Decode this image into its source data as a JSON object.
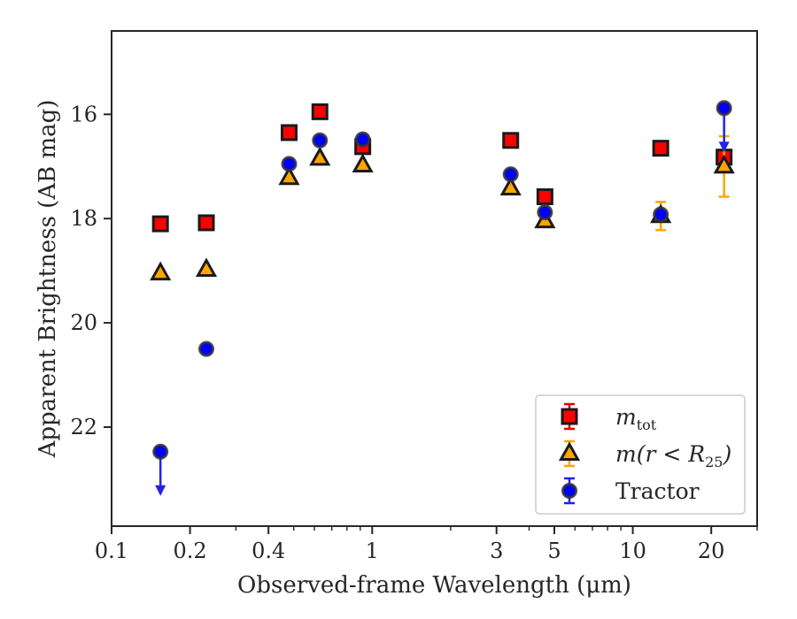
{
  "chart_data": {
    "type": "scatter",
    "xlabel": "Observed-frame Wavelength (μm)",
    "ylabel": "Apparent Brightness (AB mag)",
    "xscale": "log",
    "xlim": [
      0.1,
      30
    ],
    "ylim": [
      23.9,
      14.4
    ],
    "y_inverted": true,
    "x_ticks": [
      0.1,
      0.2,
      0.4,
      1,
      3,
      5,
      10,
      20
    ],
    "x_tick_labels": [
      "0.1",
      "0.2",
      "0.4",
      "1",
      "3",
      "5",
      "10",
      "20"
    ],
    "y_ticks": [
      16,
      18,
      20,
      22
    ],
    "y_tick_labels": [
      "16",
      "18",
      "20",
      "22"
    ],
    "legend_position": "lower-right",
    "series": [
      {
        "key": "mtot",
        "legend_base": "m",
        "legend_sub": "tot",
        "marker": "square",
        "color": "#ff0000",
        "edge": "#1a1a1a",
        "err_color": "#dd0000",
        "points": [
          {
            "x": 0.154,
            "y": 18.1
          },
          {
            "x": 0.231,
            "y": 18.08
          },
          {
            "x": 0.48,
            "y": 16.35
          },
          {
            "x": 0.63,
            "y": 15.95
          },
          {
            "x": 0.92,
            "y": 16.62
          },
          {
            "x": 3.4,
            "y": 16.5
          },
          {
            "x": 4.6,
            "y": 17.58
          },
          {
            "x": 12.8,
            "y": 16.65
          },
          {
            "x": 22.4,
            "y": 16.82
          }
        ]
      },
      {
        "key": "mr25",
        "legend_base": "m",
        "legend_mid": "(r < R",
        "legend_sub": "25",
        "legend_end": ")",
        "marker": "triangle",
        "color": "#ffa500",
        "edge": "#1a1a1a",
        "err_color": "#ffa500",
        "points": [
          {
            "x": 0.154,
            "y": 19.05
          },
          {
            "x": 0.231,
            "y": 18.98
          },
          {
            "x": 0.48,
            "y": 17.22
          },
          {
            "x": 0.63,
            "y": 16.85
          },
          {
            "x": 0.92,
            "y": 16.98
          },
          {
            "x": 3.4,
            "y": 17.42
          },
          {
            "x": 4.6,
            "y": 18.05
          },
          {
            "x": 12.8,
            "y": 17.95,
            "err": 0.27
          },
          {
            "x": 22.4,
            "y": 17.0,
            "err": 0.58
          }
        ]
      },
      {
        "key": "tractor",
        "legend_label": "Tractor",
        "marker": "circle",
        "color": "#0000ff",
        "edge": "#333333",
        "err_color": "#2222ee",
        "points": [
          {
            "x": 0.154,
            "y": 22.47,
            "upper_limit": true
          },
          {
            "x": 0.231,
            "y": 20.5
          },
          {
            "x": 0.48,
            "y": 16.95
          },
          {
            "x": 0.63,
            "y": 16.5
          },
          {
            "x": 0.92,
            "y": 16.48
          },
          {
            "x": 3.4,
            "y": 17.15
          },
          {
            "x": 4.6,
            "y": 17.88
          },
          {
            "x": 12.8,
            "y": 17.92
          },
          {
            "x": 22.4,
            "y": 15.88,
            "upper_limit": true
          }
        ]
      }
    ]
  }
}
